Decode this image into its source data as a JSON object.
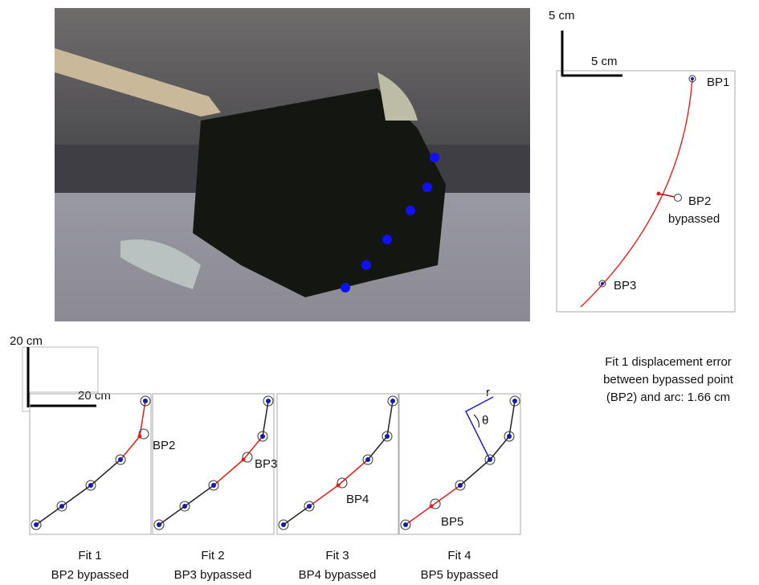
{
  "right_panel": {
    "scale_vertical": "5 cm",
    "scale_horizontal": "5 cm",
    "bp1": "BP1",
    "bp2": "BP2",
    "bypassed": "bypassed",
    "bp3": "BP3",
    "caption": [
      "Fit 1 displacement error",
      "between bypassed point",
      "(BP2) and arc: 1.66 cm"
    ]
  },
  "bottom": {
    "scale_vertical": "20 cm",
    "scale_horizontal": "20 cm",
    "radius_label": "r",
    "angle_label": "θ",
    "panels": [
      {
        "point_label": "BP2",
        "fit": "Fit 1",
        "caption": "BP2 bypassed"
      },
      {
        "point_label": "BP3",
        "fit": "Fit 2",
        "caption": "BP3 bypassed"
      },
      {
        "point_label": "BP4",
        "fit": "Fit 3",
        "caption": "BP4 bypassed"
      },
      {
        "point_label": "BP5",
        "fit": "Fit 4",
        "caption": "BP5 bypassed"
      }
    ]
  }
}
